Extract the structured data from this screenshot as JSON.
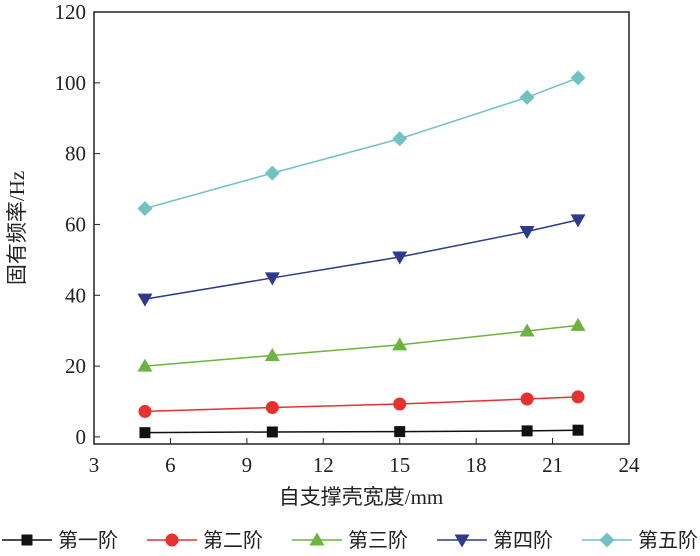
{
  "chart_data": {
    "type": "line",
    "title": "",
    "xlabel": "自支撑壳宽度/mm",
    "ylabel": "固有频率/Hz",
    "xlim": [
      3,
      24
    ],
    "ylim": [
      -2,
      120
    ],
    "xticks": [
      "3",
      "6",
      "9",
      "12",
      "15",
      "18",
      "21",
      "24"
    ],
    "yticks": [
      "0",
      "20",
      "40",
      "60",
      "80",
      "100",
      "120"
    ],
    "x": [
      5,
      10,
      15,
      20,
      22
    ],
    "grid": false,
    "legend_placement": "bottom",
    "series": [
      {
        "name": "第一阶",
        "values": [
          1.2,
          1.4,
          1.5,
          1.7,
          1.9
        ],
        "color": "#111111",
        "marker": "square"
      },
      {
        "name": "第二阶",
        "values": [
          7.2,
          8.3,
          9.3,
          10.7,
          11.3
        ],
        "color": "#e8312f",
        "marker": "circle"
      },
      {
        "name": "第三阶",
        "values": [
          20,
          23,
          26,
          29.9,
          31.5
        ],
        "color": "#6db33f",
        "marker": "triangle-up"
      },
      {
        "name": "第四阶",
        "values": [
          38.9,
          44.9,
          50.8,
          58,
          61.3
        ],
        "color": "#2e3a8c",
        "marker": "triangle-down"
      },
      {
        "name": "第五阶",
        "values": [
          64.5,
          74.5,
          84.2,
          95.9,
          101.4
        ],
        "color": "#72c2c4",
        "marker": "diamond"
      }
    ]
  }
}
